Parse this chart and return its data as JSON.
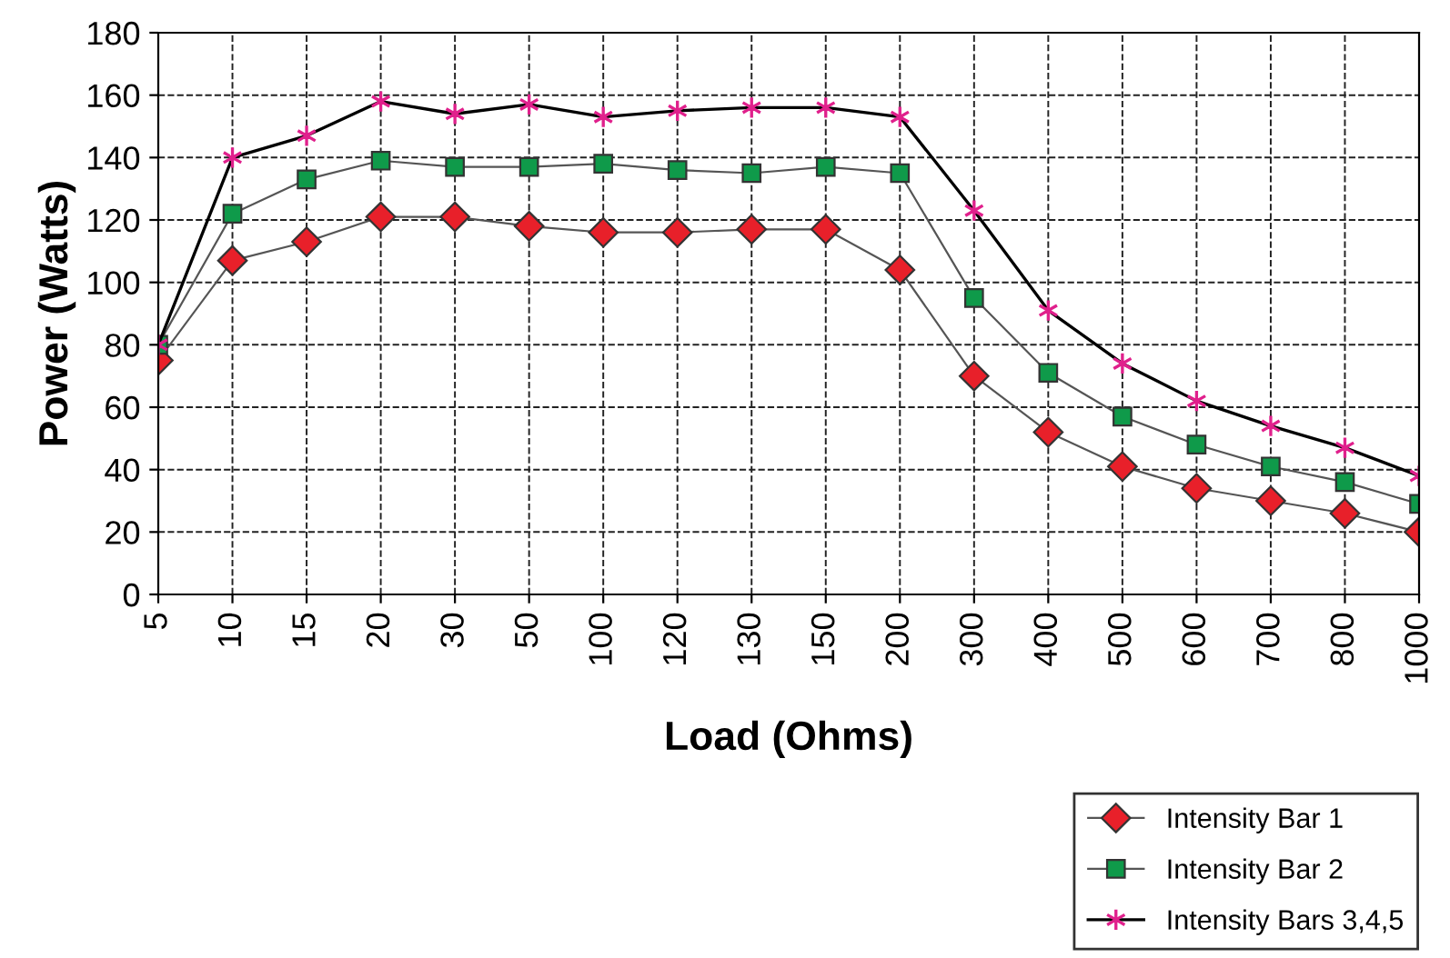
{
  "chart_data": {
    "type": "line",
    "xlabel": "Load (Ohms)",
    "ylabel": "Power (Watts)",
    "categories": [
      "5",
      "10",
      "15",
      "20",
      "30",
      "50",
      "100",
      "120",
      "130",
      "150",
      "200",
      "300",
      "400",
      "500",
      "600",
      "700",
      "800",
      "1000"
    ],
    "series": [
      {
        "name": "Intensity Bar 1",
        "color": "#e8202a",
        "marker": "diamond",
        "values": [
          75,
          107,
          113,
          121,
          121,
          118,
          116,
          116,
          117,
          117,
          104,
          70,
          52,
          41,
          34,
          30,
          26,
          20
        ]
      },
      {
        "name": "Intensity Bar 2",
        "color": "#0f9a4a",
        "marker": "square",
        "values": [
          80,
          122,
          133,
          139,
          137,
          137,
          138,
          136,
          135,
          137,
          135,
          95,
          71,
          57,
          48,
          41,
          36,
          29
        ]
      },
      {
        "name": "Intensity Bars 3,4,5",
        "color": "#e0208c",
        "marker": "cross",
        "values": [
          80,
          140,
          147,
          158,
          154,
          157,
          153,
          155,
          156,
          156,
          153,
          123,
          91,
          74,
          62,
          54,
          47,
          38
        ]
      }
    ],
    "ylim": [
      0,
      180
    ],
    "yticks": [
      0,
      20,
      40,
      60,
      80,
      100,
      120,
      140,
      160,
      180
    ],
    "grid": true,
    "legend": "bottom right",
    "line_style": "solid"
  }
}
